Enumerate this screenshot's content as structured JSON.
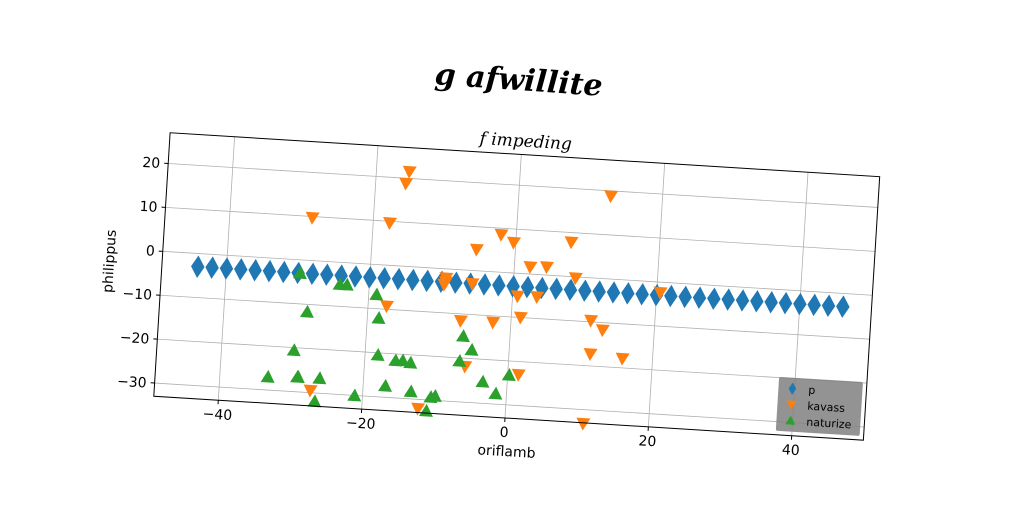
{
  "figure": {
    "suptitle": "g afwillite",
    "background": "#ffffff"
  },
  "chart_data": {
    "type": "scatter",
    "title": "f impeding",
    "xlabel": "oriflamb",
    "ylabel": "philippus",
    "xlim": [
      -49,
      50
    ],
    "ylim": [
      -33,
      27
    ],
    "xticks": [
      -40,
      -20,
      0,
      20,
      40
    ],
    "yticks": [
      -30,
      -20,
      -10,
      0,
      10,
      20
    ],
    "xtick_labels": [
      "−40",
      "−20",
      "0",
      "20",
      "40"
    ],
    "ytick_labels": [
      "−30",
      "−20",
      "−10",
      "0",
      "10",
      "20"
    ],
    "grid": true,
    "legend": {
      "placement": "lower right",
      "background": "#808080"
    },
    "series": [
      {
        "name": "p",
        "marker": "diamond",
        "color": "#1f77b4",
        "x": [
          -44,
          -42,
          -40,
          -38,
          -36,
          -34,
          -32,
          -30,
          -28,
          -26,
          -24,
          -22,
          -20,
          -18,
          -16,
          -14,
          -12,
          -10,
          -8,
          -6,
          -4,
          -2,
          0,
          2,
          4,
          6,
          8,
          10,
          12,
          14,
          16,
          18,
          20,
          22,
          24,
          26,
          28,
          30,
          32,
          34,
          36,
          38,
          40,
          42,
          44,
          46
        ],
        "y": [
          -3,
          -3,
          -3,
          -3,
          -3,
          -3,
          -3,
          -3,
          -3,
          -3,
          -3,
          -3,
          -3,
          -3,
          -3,
          -3,
          -3,
          -3,
          -3,
          -3,
          -3,
          -3,
          -3,
          -3,
          -3,
          -3,
          -3,
          -3,
          -3,
          -3,
          -3,
          -3,
          -3,
          -3,
          -3,
          -3,
          -3,
          -3,
          -3,
          -3,
          -3,
          -3,
          -3,
          -3,
          -3,
          -3
        ]
      },
      {
        "name": "kavass",
        "marker": "triangle-down",
        "color": "#ff7f0e",
        "x": [
          -28.5,
          -15.4,
          -15.8,
          -17.7,
          -17.4,
          -9.4,
          -9.4,
          -9.6,
          -7.0,
          -6.0,
          -5.7,
          -5.4,
          -2.5,
          -2.1,
          -0.3,
          1.3,
          0.7,
          1.5,
          2.2,
          4.5,
          3.4,
          7.7,
          8.6,
          12.8,
          10.9,
          11.1,
          11.3,
          12.8,
          15.8,
          20.5,
          -27.3,
          -12.2
        ],
        "y": [
          9.7,
          21.5,
          18.8,
          9.6,
          -9.3,
          -3.0,
          -2.1,
          -3.6,
          -11.6,
          -21.9,
          -3.0,
          4.8,
          -11.5,
          8.5,
          6.9,
          -10.0,
          -5.2,
          -23.0,
          1.6,
          1.8,
          -5.1,
          7.8,
          -0.3,
          18.8,
          -33.2,
          -9.7,
          -17.3,
          -11.7,
          -17.9,
          -2.4,
          -29.5,
          -32.1
        ]
      },
      {
        "name": "naturize",
        "marker": "triangle-up",
        "color": "#2ca02c",
        "x": [
          -33.3,
          -29.7,
          -29.9,
          -29.2,
          -29.1,
          -28.4,
          -26.6,
          -26.1,
          -24.1,
          -23.1,
          -21.1,
          -18.9,
          -18.4,
          -18.2,
          -16.9,
          -15.7,
          -14.7,
          -13.6,
          -13.3,
          -11.0,
          -10.5,
          -9.9,
          -6.5,
          -6.8,
          -5.2,
          -3.4,
          -1.5,
          0.2
        ],
        "y": [
          -27.0,
          -3.0,
          -20.6,
          -26.6,
          -26.6,
          -11.7,
          -31.9,
          -26.6,
          -5.0,
          -5.0,
          -30.0,
          -6.8,
          -12.1,
          -20.5,
          -27.4,
          -21.5,
          -21.4,
          -21.8,
          -28.3,
          -32.5,
          -29.3,
          -29.0,
          -15.0,
          -20.7,
          -18.0,
          -25.1,
          -27.6,
          -23.2
        ]
      }
    ]
  }
}
